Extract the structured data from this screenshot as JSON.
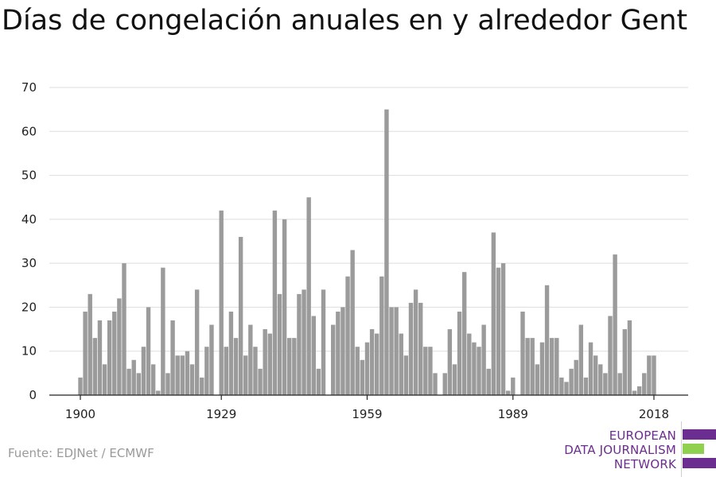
{
  "title": "Días de congelación anuales en y alrededor Gent",
  "source": "Fuente: EDJNet / ECMWF",
  "logo": {
    "lines": [
      "EUROPEAN",
      "DATA JOURNALISM",
      "NETWORK"
    ],
    "colors": {
      "purple": "#6b2d8f",
      "green": "#8fd14f"
    }
  },
  "chart_data": {
    "type": "bar",
    "title": "Días de congelación anuales en y alrededor Gent",
    "xlabel": "",
    "ylabel": "",
    "ylim": [
      0,
      70
    ],
    "yticks": [
      0,
      10,
      20,
      30,
      40,
      50,
      60,
      70
    ],
    "xticks": [
      1900,
      1929,
      1959,
      1989,
      2018
    ],
    "grid": true,
    "bar_color": "#9b9b9b",
    "x": [
      1900,
      1901,
      1902,
      1903,
      1904,
      1905,
      1906,
      1907,
      1908,
      1909,
      1910,
      1911,
      1912,
      1913,
      1914,
      1915,
      1916,
      1917,
      1918,
      1919,
      1920,
      1921,
      1922,
      1923,
      1924,
      1925,
      1926,
      1927,
      1928,
      1929,
      1930,
      1931,
      1932,
      1933,
      1934,
      1935,
      1936,
      1937,
      1938,
      1939,
      1940,
      1941,
      1942,
      1943,
      1944,
      1945,
      1946,
      1947,
      1948,
      1949,
      1950,
      1951,
      1952,
      1953,
      1954,
      1955,
      1956,
      1957,
      1958,
      1959,
      1960,
      1961,
      1962,
      1963,
      1964,
      1965,
      1966,
      1967,
      1968,
      1969,
      1970,
      1971,
      1972,
      1973,
      1974,
      1975,
      1976,
      1977,
      1978,
      1979,
      1980,
      1981,
      1982,
      1983,
      1984,
      1985,
      1986,
      1987,
      1988,
      1989,
      1990,
      1991,
      1992,
      1993,
      1994,
      1995,
      1996,
      1997,
      1998,
      1999,
      2000,
      2001,
      2002,
      2003,
      2004,
      2005,
      2006,
      2007,
      2008,
      2009,
      2010,
      2011,
      2012,
      2013,
      2014,
      2015,
      2016,
      2017,
      2018
    ],
    "values": [
      4,
      19,
      23,
      13,
      17,
      7,
      17,
      19,
      22,
      30,
      6,
      8,
      5,
      11,
      20,
      7,
      1,
      29,
      5,
      17,
      9,
      9,
      10,
      7,
      24,
      4,
      11,
      16,
      0,
      42,
      11,
      19,
      13,
      36,
      9,
      16,
      11,
      6,
      15,
      14,
      42,
      23,
      40,
      13,
      13,
      23,
      24,
      45,
      18,
      6,
      24,
      0,
      16,
      19,
      20,
      27,
      33,
      11,
      8,
      12,
      15,
      14,
      27,
      65,
      20,
      20,
      14,
      9,
      21,
      24,
      21,
      11,
      11,
      5,
      0,
      5,
      15,
      7,
      19,
      28,
      14,
      12,
      11,
      16,
      6,
      37,
      29,
      30,
      1,
      4,
      0,
      19,
      13,
      13,
      7,
      12,
      25,
      13,
      13,
      4,
      3,
      6,
      8,
      16,
      4,
      12,
      9,
      7,
      5,
      18,
      32,
      5,
      15,
      17,
      1,
      2,
      5,
      9,
      9
    ]
  }
}
